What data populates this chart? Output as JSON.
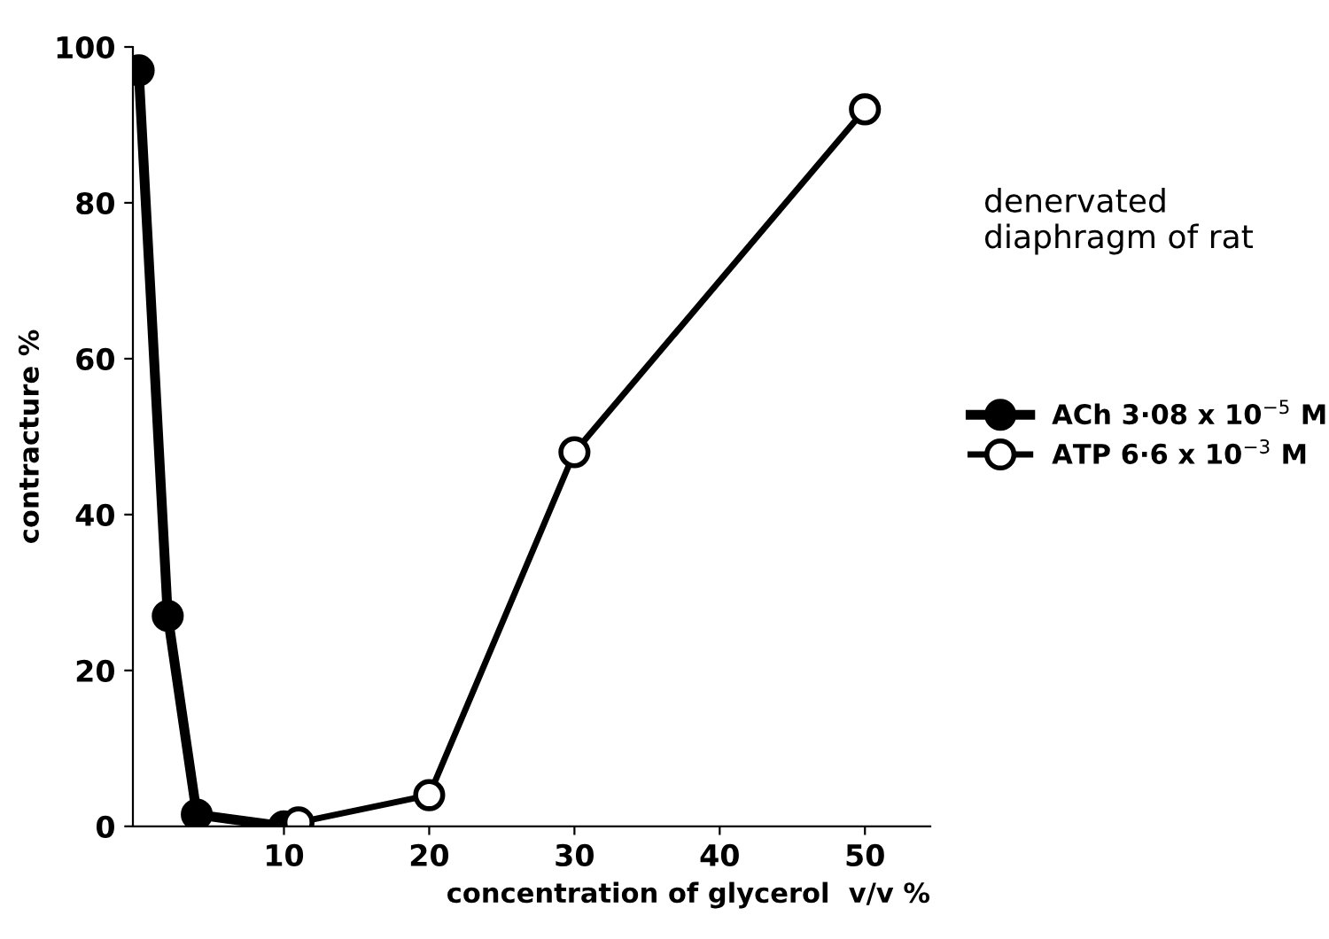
{
  "chart_data": {
    "type": "line",
    "xlabel": "concentration of glycerol  v/v %",
    "ylabel": "contracture %",
    "annotations": [
      "denervated\ndiaphragm of rat"
    ],
    "series": [
      {
        "name": "ACh 3·08 x 10$^{−5}$ M",
        "color": "#000000",
        "x": [
          0,
          2,
          4,
          10
        ],
        "values": [
          97,
          27,
          1.5,
          0
        ]
      },
      {
        "name": "ATP 6·6 x 10$^{−3}$ M",
        "color": "#000000",
        "x": [
          11,
          20,
          30,
          50
        ],
        "values": [
          0.5,
          4,
          48,
          92
        ]
      }
    ],
    "xlim": [
      -0.4,
      54.5
    ],
    "xticks": [
      10,
      20,
      30,
      40,
      50
    ],
    "ylim": [
      0,
      100
    ],
    "yticks": [
      0,
      20,
      40,
      60,
      80,
      {
        "value": 100,
        "label": "100"
      }
    ],
    "marker": "circle",
    "line_style": "solid",
    "legend": "right",
    "grid": false
  }
}
